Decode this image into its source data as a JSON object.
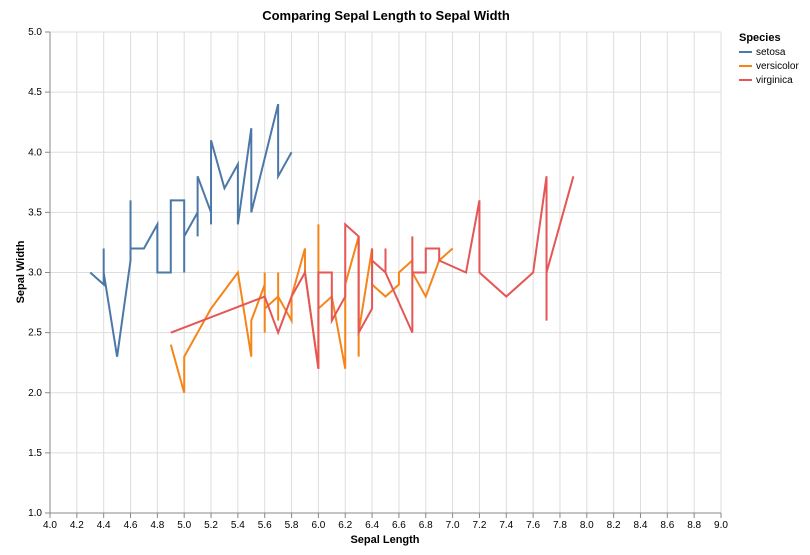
{
  "chart_data": {
    "type": "line",
    "title": "Comparing Sepal Length to Sepal Width",
    "xlabel": "Sepal Length",
    "ylabel": "Sepal Width",
    "xlim": [
      4.0,
      9.0
    ],
    "ylim": [
      1.0,
      5.0
    ],
    "x_ticks": [
      "4.0",
      "4.2",
      "4.4",
      "4.6",
      "4.8",
      "5.0",
      "5.2",
      "5.4",
      "5.6",
      "5.8",
      "6.0",
      "6.2",
      "6.4",
      "6.6",
      "6.8",
      "7.0",
      "7.2",
      "7.4",
      "7.6",
      "7.8",
      "8.0",
      "8.2",
      "8.4",
      "8.6",
      "8.8",
      "9.0"
    ],
    "y_ticks": [
      "1.0",
      "1.5",
      "2.0",
      "2.5",
      "3.0",
      "3.5",
      "4.0",
      "4.5",
      "5.0"
    ],
    "grid": true,
    "legend": {
      "title": "Species",
      "position": "right"
    },
    "series": [
      {
        "name": "setosa",
        "color": "#4c78a8",
        "points": [
          [
            4.3,
            3.0
          ],
          [
            4.4,
            2.9
          ],
          [
            4.4,
            3.2
          ],
          [
            4.4,
            3.0
          ],
          [
            4.5,
            2.3
          ],
          [
            4.6,
            3.1
          ],
          [
            4.6,
            3.6
          ],
          [
            4.6,
            3.2
          ],
          [
            4.7,
            3.2
          ],
          [
            4.8,
            3.4
          ],
          [
            4.8,
            3.0
          ],
          [
            4.9,
            3.0
          ],
          [
            4.9,
            3.6
          ],
          [
            5.0,
            3.6
          ],
          [
            5.0,
            3.0
          ],
          [
            5.0,
            3.3
          ],
          [
            5.1,
            3.5
          ],
          [
            5.1,
            3.3
          ],
          [
            5.1,
            3.8
          ],
          [
            5.2,
            3.5
          ],
          [
            5.2,
            3.4
          ],
          [
            5.2,
            4.1
          ],
          [
            5.3,
            3.7
          ],
          [
            5.4,
            3.9
          ],
          [
            5.4,
            3.4
          ],
          [
            5.5,
            4.2
          ],
          [
            5.5,
            3.5
          ],
          [
            5.7,
            4.4
          ],
          [
            5.7,
            3.8
          ],
          [
            5.8,
            4.0
          ]
        ]
      },
      {
        "name": "versicolor",
        "color": "#f58518",
        "points": [
          [
            4.9,
            2.4
          ],
          [
            5.0,
            2.0
          ],
          [
            5.0,
            2.3
          ],
          [
            5.2,
            2.7
          ],
          [
            5.4,
            3.0
          ],
          [
            5.5,
            2.3
          ],
          [
            5.5,
            2.6
          ],
          [
            5.6,
            2.9
          ],
          [
            5.6,
            3.0
          ],
          [
            5.6,
            2.5
          ],
          [
            5.6,
            2.7
          ],
          [
            5.7,
            2.8
          ],
          [
            5.7,
            2.6
          ],
          [
            5.7,
            3.0
          ],
          [
            5.7,
            2.8
          ],
          [
            5.8,
            2.6
          ],
          [
            5.8,
            2.8
          ],
          [
            5.9,
            3.2
          ],
          [
            5.9,
            3.0
          ],
          [
            6.0,
            2.2
          ],
          [
            6.0,
            3.4
          ],
          [
            6.0,
            2.7
          ],
          [
            6.1,
            2.8
          ],
          [
            6.2,
            2.2
          ],
          [
            6.2,
            2.9
          ],
          [
            6.3,
            3.3
          ],
          [
            6.3,
            2.3
          ],
          [
            6.3,
            2.5
          ],
          [
            6.4,
            3.2
          ],
          [
            6.4,
            2.9
          ],
          [
            6.5,
            2.8
          ],
          [
            6.6,
            2.9
          ],
          [
            6.6,
            3.0
          ],
          [
            6.7,
            3.1
          ],
          [
            6.7,
            3.0
          ],
          [
            6.8,
            2.8
          ],
          [
            6.9,
            3.1
          ],
          [
            7.0,
            3.2
          ]
        ]
      },
      {
        "name": "virginica",
        "color": "#e45756",
        "points": [
          [
            4.9,
            2.5
          ],
          [
            5.6,
            2.8
          ],
          [
            5.7,
            2.5
          ],
          [
            5.8,
            2.8
          ],
          [
            5.9,
            3.0
          ],
          [
            6.0,
            2.2
          ],
          [
            6.0,
            3.0
          ],
          [
            6.1,
            3.0
          ],
          [
            6.1,
            2.6
          ],
          [
            6.2,
            2.8
          ],
          [
            6.2,
            3.4
          ],
          [
            6.3,
            3.3
          ],
          [
            6.3,
            2.5
          ],
          [
            6.4,
            2.7
          ],
          [
            6.4,
            3.2
          ],
          [
            6.4,
            3.1
          ],
          [
            6.5,
            3.0
          ],
          [
            6.5,
            3.2
          ],
          [
            6.5,
            3.0
          ],
          [
            6.7,
            2.5
          ],
          [
            6.7,
            3.3
          ],
          [
            6.7,
            3.0
          ],
          [
            6.8,
            3.0
          ],
          [
            6.8,
            3.2
          ],
          [
            6.9,
            3.2
          ],
          [
            6.9,
            3.1
          ],
          [
            7.1,
            3.0
          ],
          [
            7.2,
            3.6
          ],
          [
            7.2,
            3.0
          ],
          [
            7.4,
            2.8
          ],
          [
            7.6,
            3.0
          ],
          [
            7.7,
            3.8
          ],
          [
            7.7,
            2.6
          ],
          [
            7.7,
            3.0
          ],
          [
            7.9,
            3.8
          ]
        ]
      }
    ]
  }
}
